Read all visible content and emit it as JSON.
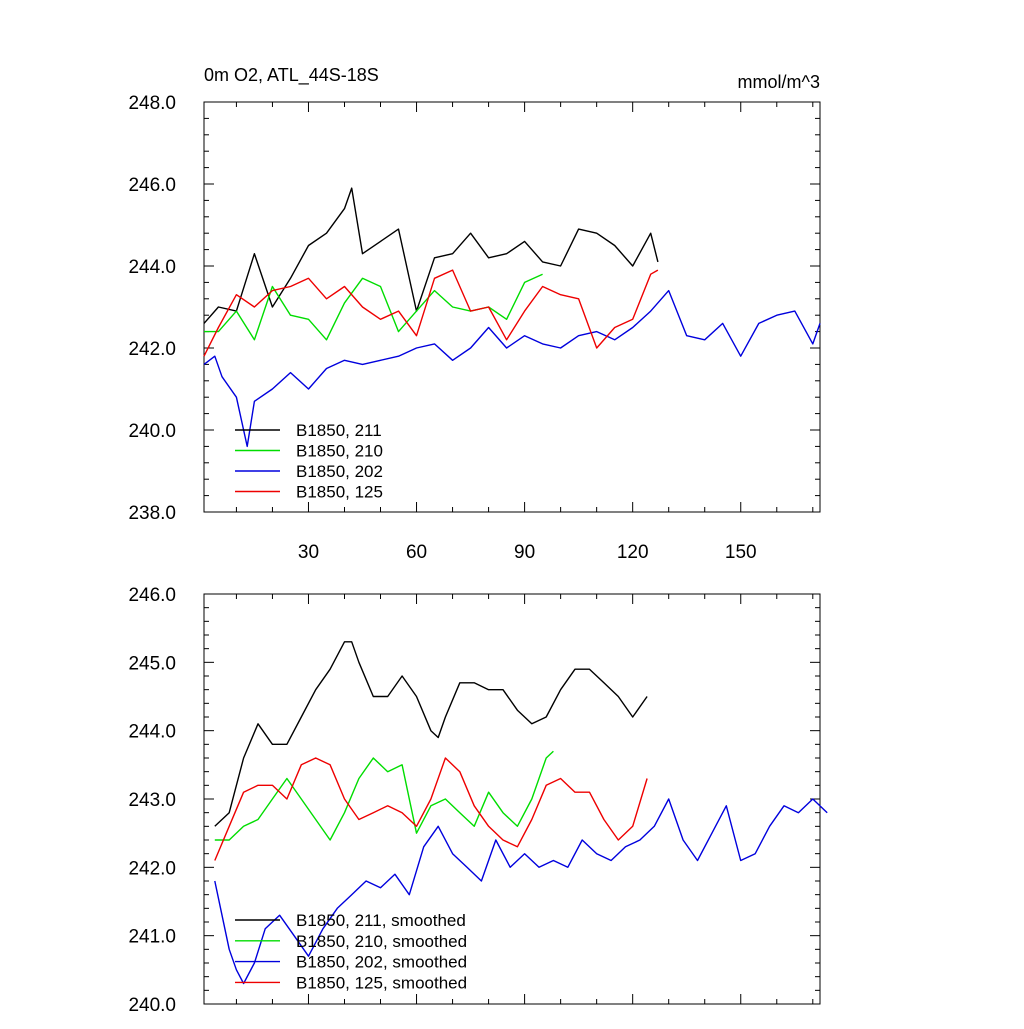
{
  "chart_data": [
    {
      "type": "line",
      "title": "0m O2, ATL_44S-18S",
      "units": "mmol/m^3",
      "xlim": [
        1,
        172
      ],
      "ylim": [
        238,
        248
      ],
      "yticks": [
        238,
        240,
        242,
        244,
        246,
        248
      ],
      "ytick_labels": [
        "238.0",
        "240.0",
        "242.0",
        "244.0",
        "246.0",
        "248.0"
      ],
      "xticks": [
        30,
        60,
        90,
        120,
        150
      ],
      "xtick_labels": [
        "30",
        "60",
        "90",
        "120",
        "150"
      ],
      "legend_position": "bottom-left",
      "series": [
        {
          "name": "B1850, 211",
          "color": "#000000",
          "x": [
            1,
            5,
            10,
            15,
            20,
            25,
            30,
            35,
            40,
            42,
            45,
            50,
            55,
            60,
            65,
            70,
            75,
            80,
            85,
            90,
            95,
            100,
            105,
            110,
            115,
            120,
            125,
            127
          ],
          "y": [
            242.6,
            243.0,
            242.9,
            244.3,
            243.0,
            243.7,
            244.5,
            244.8,
            245.4,
            245.9,
            244.3,
            244.6,
            244.9,
            242.9,
            244.2,
            244.3,
            244.8,
            244.2,
            244.3,
            244.6,
            244.1,
            244.0,
            244.9,
            244.8,
            244.5,
            244.0,
            244.8,
            244.1
          ]
        },
        {
          "name": "B1850, 210",
          "color": "#00dd00",
          "x": [
            1,
            5,
            10,
            15,
            20,
            25,
            30,
            35,
            40,
            45,
            50,
            55,
            60,
            65,
            70,
            75,
            80,
            85,
            90,
            95
          ],
          "y": [
            242.4,
            242.4,
            242.9,
            242.2,
            243.5,
            242.8,
            242.7,
            242.2,
            243.1,
            243.7,
            243.5,
            242.4,
            242.9,
            243.4,
            243.0,
            242.9,
            243.0,
            242.7,
            243.6,
            243.8
          ]
        },
        {
          "name": "B1850, 202",
          "color": "#0000dd",
          "x": [
            1,
            4,
            6,
            10,
            13,
            15,
            20,
            25,
            30,
            35,
            40,
            45,
            50,
            55,
            60,
            65,
            70,
            75,
            80,
            85,
            90,
            95,
            100,
            105,
            110,
            115,
            120,
            125,
            130,
            135,
            140,
            145,
            150,
            155,
            160,
            165,
            170,
            172
          ],
          "y": [
            241.6,
            241.8,
            241.3,
            240.8,
            239.6,
            240.7,
            241.0,
            241.4,
            241.0,
            241.5,
            241.7,
            241.6,
            241.7,
            241.8,
            242.0,
            242.1,
            241.7,
            242.0,
            242.5,
            242.0,
            242.3,
            242.1,
            242.0,
            242.3,
            242.4,
            242.2,
            242.5,
            242.9,
            243.4,
            242.3,
            242.2,
            242.6,
            241.8,
            242.6,
            242.8,
            242.9,
            242.1,
            242.6
          ]
        },
        {
          "name": "B1850, 125",
          "color": "#ee0000",
          "x": [
            1,
            5,
            10,
            15,
            20,
            25,
            30,
            35,
            40,
            45,
            50,
            55,
            60,
            65,
            70,
            75,
            80,
            85,
            90,
            95,
            100,
            105,
            110,
            115,
            120,
            125,
            127
          ],
          "y": [
            241.8,
            242.5,
            243.3,
            243.0,
            243.4,
            243.5,
            243.7,
            243.2,
            243.5,
            243.0,
            242.7,
            242.9,
            242.3,
            243.7,
            243.9,
            242.9,
            243.0,
            242.2,
            242.9,
            243.5,
            243.3,
            243.2,
            242.0,
            242.5,
            242.7,
            243.8,
            243.9
          ]
        }
      ]
    },
    {
      "type": "line",
      "xlim": [
        1,
        172
      ],
      "ylim": [
        240,
        246
      ],
      "yticks": [
        240,
        241,
        242,
        243,
        244,
        245,
        246
      ],
      "ytick_labels": [
        "240.0",
        "241.0",
        "242.0",
        "243.0",
        "244.0",
        "245.0",
        "246.0"
      ],
      "legend_position": "bottom-left",
      "series": [
        {
          "name": "B1850, 211, smoothed",
          "color": "#000000",
          "x": [
            4,
            8,
            12,
            16,
            20,
            24,
            28,
            32,
            36,
            40,
            42,
            44,
            48,
            52,
            56,
            60,
            64,
            66,
            68,
            72,
            76,
            80,
            84,
            88,
            92,
            96,
            100,
            104,
            108,
            112,
            116,
            120,
            124
          ],
          "y": [
            242.6,
            242.8,
            243.6,
            244.1,
            243.8,
            243.8,
            244.2,
            244.6,
            244.9,
            245.3,
            245.3,
            245.0,
            244.5,
            244.5,
            244.8,
            244.5,
            244.0,
            243.9,
            244.2,
            244.7,
            244.7,
            244.6,
            244.6,
            244.3,
            244.1,
            244.2,
            244.6,
            244.9,
            244.9,
            244.7,
            244.5,
            244.2,
            244.5
          ]
        },
        {
          "name": "B1850, 210, smoothed",
          "color": "#00dd00",
          "x": [
            4,
            8,
            12,
            16,
            20,
            24,
            28,
            32,
            36,
            40,
            44,
            48,
            52,
            56,
            60,
            64,
            68,
            72,
            76,
            80,
            84,
            88,
            92,
            96,
            98
          ],
          "y": [
            242.4,
            242.4,
            242.6,
            242.7,
            243.0,
            243.3,
            243.0,
            242.7,
            242.4,
            242.8,
            243.3,
            243.6,
            243.4,
            243.5,
            242.5,
            242.9,
            243.0,
            242.8,
            242.6,
            243.1,
            242.8,
            242.6,
            243.0,
            243.6,
            243.7
          ]
        },
        {
          "name": "B1850, 202, smoothed",
          "color": "#0000dd",
          "x": [
            4,
            6,
            8,
            10,
            12,
            15,
            18,
            22,
            26,
            30,
            34,
            38,
            42,
            46,
            50,
            54,
            58,
            62,
            66,
            70,
            74,
            78,
            82,
            86,
            90,
            94,
            98,
            102,
            106,
            110,
            114,
            118,
            122,
            126,
            130,
            134,
            138,
            142,
            146,
            150,
            154,
            158,
            162,
            166,
            170,
            174
          ],
          "y": [
            241.8,
            241.3,
            240.8,
            240.5,
            240.3,
            240.6,
            241.1,
            241.3,
            241.0,
            240.7,
            241.1,
            241.4,
            241.6,
            241.8,
            241.7,
            241.9,
            241.6,
            242.3,
            242.6,
            242.2,
            242.0,
            241.8,
            242.4,
            242.0,
            242.2,
            242.0,
            242.1,
            242.0,
            242.4,
            242.2,
            242.1,
            242.3,
            242.4,
            242.6,
            243.0,
            242.4,
            242.1,
            242.5,
            242.9,
            242.1,
            242.2,
            242.6,
            242.9,
            242.8,
            243.0,
            242.8
          ]
        },
        {
          "name": "B1850, 125, smoothed",
          "color": "#ee0000",
          "x": [
            4,
            8,
            12,
            16,
            20,
            24,
            28,
            32,
            36,
            40,
            44,
            48,
            52,
            56,
            60,
            64,
            68,
            72,
            76,
            80,
            84,
            88,
            92,
            96,
            100,
            104,
            108,
            112,
            116,
            120,
            124
          ],
          "y": [
            242.1,
            242.6,
            243.1,
            243.2,
            243.2,
            243.0,
            243.5,
            243.6,
            243.5,
            243.0,
            242.7,
            242.8,
            242.9,
            242.8,
            242.6,
            243.0,
            243.6,
            243.4,
            242.9,
            242.6,
            242.4,
            242.3,
            242.7,
            243.2,
            243.3,
            243.1,
            243.1,
            242.7,
            242.4,
            242.6,
            243.3
          ]
        }
      ]
    }
  ]
}
